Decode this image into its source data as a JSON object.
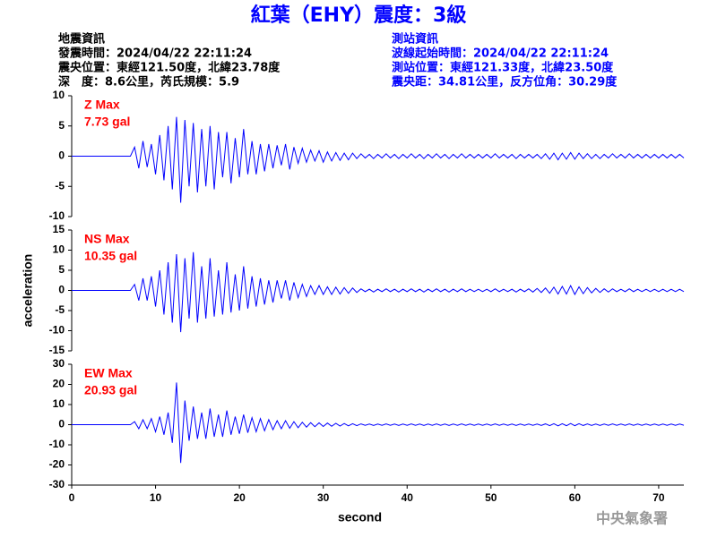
{
  "header": {
    "title": "紅葉（EHY）震度：3級",
    "event": [
      "地震資訊",
      "發震時間：2024/04/22 22:11:24",
      "震央位置：東經121.50度，北緯23.78度",
      "深　度：8.6公里，芮氏規模：5.9"
    ],
    "station": [
      "測站資訊",
      "波線起始時間：2024/04/22 22:11:24",
      "測站位置：東經121.33度，北緯23.50度",
      "震央距：34.81公里，反方位角：30.29度"
    ],
    "footer": "中央氣象署"
  },
  "chart_data": [
    {
      "type": "line",
      "annotation": [
        "Z Max",
        "7.73 gal"
      ],
      "color": "#0000ff",
      "x": [
        0,
        0.5,
        1,
        1.5,
        2,
        2.5,
        3,
        3.5,
        4,
        4.5,
        5,
        5.5,
        6,
        6.5,
        7,
        7.5,
        8,
        8.5,
        9,
        9.5,
        10,
        10.5,
        11,
        11.5,
        12,
        12.5,
        13,
        13.5,
        14,
        14.5,
        15,
        15.5,
        16,
        16.5,
        17,
        17.5,
        18,
        18.5,
        19,
        19.5,
        20,
        20.5,
        21,
        21.5,
        22,
        22.5,
        23,
        23.5,
        24,
        24.5,
        25,
        25.5,
        26,
        26.5,
        27,
        27.5,
        28,
        28.5,
        29,
        29.5,
        30,
        30.5,
        31,
        31.5,
        32,
        32.5,
        33,
        33.5,
        34,
        34.5,
        35,
        35.5,
        36,
        36.5,
        37,
        37.5,
        38,
        38.5,
        39,
        39.5,
        40,
        40.5,
        41,
        41.5,
        42,
        42.5,
        43,
        43.5,
        44,
        44.5,
        45,
        45.5,
        46,
        46.5,
        47,
        47.5,
        48,
        48.5,
        49,
        49.5,
        50,
        50.5,
        51,
        51.5,
        52,
        52.5,
        53,
        53.5,
        54,
        54.5,
        55,
        55.5,
        56,
        56.5,
        57,
        57.5,
        58,
        58.5,
        59,
        59.5,
        60,
        60.5,
        61,
        61.5,
        62,
        62.5,
        63,
        63.5,
        64,
        64.5,
        65,
        65.5,
        66,
        66.5,
        67,
        67.5,
        68,
        68.5,
        69,
        69.5,
        70,
        70.5,
        71,
        71.5,
        72,
        72.5,
        73
      ],
      "values": [
        0,
        0,
        0,
        0,
        0,
        0,
        0,
        0,
        0,
        0,
        0,
        0,
        0,
        0,
        0,
        1.5,
        -2,
        2.5,
        -1.8,
        2,
        -3,
        3.5,
        -4,
        5,
        -5.5,
        6.5,
        -7.7,
        6,
        -5,
        5.5,
        -6,
        4.5,
        -5,
        5,
        -5.5,
        4,
        -3.5,
        4,
        -4.5,
        3,
        -3.5,
        4.5,
        -3,
        2.5,
        -3,
        2,
        -2.5,
        2,
        -2,
        1.8,
        -1.5,
        2,
        -2.2,
        1.5,
        -1.2,
        1.3,
        -1,
        1,
        -0.8,
        0.9,
        -1,
        0.7,
        -0.8,
        0.6,
        -0.7,
        0.5,
        -0.6,
        0.5,
        -0.4,
        0.4,
        -0.3,
        0.3,
        -0.4,
        0.3,
        -0.3,
        0.4,
        -0.3,
        0.3,
        -0.4,
        0.3,
        -0.3,
        0.4,
        -0.3,
        0.3,
        -0.4,
        0.3,
        -0.3,
        0.4,
        -0.3,
        0.3,
        -0.4,
        0.3,
        -0.3,
        0.4,
        -0.3,
        0.3,
        -0.3,
        0.3,
        -0.3,
        0.3,
        -0.3,
        0.4,
        -0.3,
        0.3,
        -0.3,
        0.3,
        -0.4,
        0.3,
        -0.3,
        0.3,
        -0.3,
        0.3,
        -0.4,
        0.4,
        -0.5,
        0.5,
        -0.6,
        0.5,
        -0.5,
        0.6,
        -0.5,
        0.5,
        -0.4,
        0.4,
        -0.4,
        0.3,
        -0.4,
        0.3,
        -0.3,
        0.4,
        -0.3,
        0.3,
        -0.3,
        0.4,
        -0.3,
        0.3,
        -0.3,
        0.3,
        -0.3,
        0.3,
        -0.3,
        0.3,
        -0.3,
        0.3,
        -0.3,
        0.3,
        -0.3
      ],
      "xlim": [
        0,
        73
      ],
      "ylim": [
        -10,
        10
      ],
      "yticks": [
        -10,
        -5,
        0,
        5,
        10
      ]
    },
    {
      "type": "line",
      "annotation": [
        "NS Max",
        "10.35 gal"
      ],
      "color": "#0000ff",
      "ylabel": "acceleration",
      "x": [
        0,
        0.5,
        1,
        1.5,
        2,
        2.5,
        3,
        3.5,
        4,
        4.5,
        5,
        5.5,
        6,
        6.5,
        7,
        7.5,
        8,
        8.5,
        9,
        9.5,
        10,
        10.5,
        11,
        11.5,
        12,
        12.5,
        13,
        13.5,
        14,
        14.5,
        15,
        15.5,
        16,
        16.5,
        17,
        17.5,
        18,
        18.5,
        19,
        19.5,
        20,
        20.5,
        21,
        21.5,
        22,
        22.5,
        23,
        23.5,
        24,
        24.5,
        25,
        25.5,
        26,
        26.5,
        27,
        27.5,
        28,
        28.5,
        29,
        29.5,
        30,
        30.5,
        31,
        31.5,
        32,
        32.5,
        33,
        33.5,
        34,
        34.5,
        35,
        35.5,
        36,
        36.5,
        37,
        37.5,
        38,
        38.5,
        39,
        39.5,
        40,
        40.5,
        41,
        41.5,
        42,
        42.5,
        43,
        43.5,
        44,
        44.5,
        45,
        45.5,
        46,
        46.5,
        47,
        47.5,
        48,
        48.5,
        49,
        49.5,
        50,
        50.5,
        51,
        51.5,
        52,
        52.5,
        53,
        53.5,
        54,
        54.5,
        55,
        55.5,
        56,
        56.5,
        57,
        57.5,
        58,
        58.5,
        59,
        59.5,
        60,
        60.5,
        61,
        61.5,
        62,
        62.5,
        63,
        63.5,
        64,
        64.5,
        65,
        65.5,
        66,
        66.5,
        67,
        67.5,
        68,
        68.5,
        69,
        69.5,
        70,
        70.5,
        71,
        71.5,
        72,
        72.5,
        73
      ],
      "values": [
        0,
        0,
        0,
        0,
        0,
        0,
        0,
        0,
        0,
        0,
        0,
        0,
        0,
        0,
        0,
        1.5,
        -2.5,
        3,
        -2.5,
        3.5,
        -4,
        5,
        -6,
        7,
        -8,
        9,
        -10.35,
        8,
        -7,
        9.5,
        -8,
        6,
        -7,
        8,
        -6.5,
        5,
        -6,
        7,
        -5.5,
        4,
        -5,
        6,
        -4.5,
        3.5,
        -4,
        3,
        -3.5,
        2.5,
        -3,
        2.5,
        -2,
        2.5,
        -2.5,
        2,
        -1.8,
        1.5,
        -1.5,
        1.2,
        -1,
        1.2,
        -1,
        0.9,
        -1,
        0.8,
        -0.9,
        0.7,
        -0.7,
        0.6,
        -0.5,
        0.4,
        -0.3,
        0.3,
        -0.4,
        0.3,
        -0.3,
        0.4,
        -0.3,
        0.3,
        -0.4,
        0.3,
        -0.3,
        0.4,
        -0.3,
        0.3,
        -0.4,
        0.3,
        -0.3,
        0.4,
        -0.3,
        0.3,
        -0.4,
        0.3,
        -0.3,
        0.4,
        -0.3,
        0.3,
        -0.3,
        0.3,
        -0.3,
        0.3,
        -0.3,
        0.4,
        -0.3,
        0.3,
        -0.3,
        0.3,
        -0.4,
        0.3,
        -0.3,
        0.4,
        -0.4,
        0.5,
        -0.5,
        0.6,
        -0.7,
        0.8,
        -0.9,
        1,
        -0.9,
        1.2,
        -1,
        0.9,
        -0.8,
        0.7,
        -0.6,
        0.5,
        -0.5,
        0.4,
        -0.4,
        0.4,
        -0.3,
        0.3,
        -0.3,
        0.4,
        -0.3,
        0.3,
        -0.3,
        0.3,
        -0.3,
        0.3,
        -0.3,
        0.3,
        -0.3,
        0.3,
        -0.3,
        0.3,
        -0.3
      ],
      "xlim": [
        0,
        73
      ],
      "ylim": [
        -15,
        15
      ],
      "yticks": [
        -15,
        -10,
        -5,
        0,
        5,
        10,
        15
      ]
    },
    {
      "type": "line",
      "annotation": [
        "EW Max",
        "20.93 gal"
      ],
      "color": "#0000ff",
      "xlabel": "second",
      "x": [
        0,
        0.5,
        1,
        1.5,
        2,
        2.5,
        3,
        3.5,
        4,
        4.5,
        5,
        5.5,
        6,
        6.5,
        7,
        7.5,
        8,
        8.5,
        9,
        9.5,
        10,
        10.5,
        11,
        11.5,
        12,
        12.5,
        13,
        13.5,
        14,
        14.5,
        15,
        15.5,
        16,
        16.5,
        17,
        17.5,
        18,
        18.5,
        19,
        19.5,
        20,
        20.5,
        21,
        21.5,
        22,
        22.5,
        23,
        23.5,
        24,
        24.5,
        25,
        25.5,
        26,
        26.5,
        27,
        27.5,
        28,
        28.5,
        29,
        29.5,
        30,
        30.5,
        31,
        31.5,
        32,
        32.5,
        33,
        33.5,
        34,
        34.5,
        35,
        35.5,
        36,
        36.5,
        37,
        37.5,
        38,
        38.5,
        39,
        39.5,
        40,
        40.5,
        41,
        41.5,
        42,
        42.5,
        43,
        43.5,
        44,
        44.5,
        45,
        45.5,
        46,
        46.5,
        47,
        47.5,
        48,
        48.5,
        49,
        49.5,
        50,
        50.5,
        51,
        51.5,
        52,
        52.5,
        53,
        53.5,
        54,
        54.5,
        55,
        55.5,
        56,
        56.5,
        57,
        57.5,
        58,
        58.5,
        59,
        59.5,
        60,
        60.5,
        61,
        61.5,
        62,
        62.5,
        63,
        63.5,
        64,
        64.5,
        65,
        65.5,
        66,
        66.5,
        67,
        67.5,
        68,
        68.5,
        69,
        69.5,
        70,
        70.5,
        71,
        71.5,
        72,
        72.5,
        73
      ],
      "values": [
        0,
        0,
        0,
        0,
        0,
        0,
        0,
        0,
        0,
        0,
        0,
        0,
        0,
        0,
        0,
        1.5,
        -2,
        2.5,
        -2,
        3,
        -3.5,
        4,
        -5,
        6,
        -9,
        20.93,
        -19,
        12,
        -8,
        9,
        -7,
        6,
        -7,
        8,
        -6,
        5,
        -6,
        7,
        -5,
        4,
        -4.5,
        5,
        -4,
        3.5,
        -3.5,
        3,
        -3,
        2.5,
        -2.5,
        2,
        -2,
        2,
        -1.8,
        1.5,
        -1.5,
        1.2,
        -1.2,
        1,
        -1,
        0.9,
        -0.9,
        0.8,
        -0.8,
        0.7,
        -0.7,
        0.6,
        -0.6,
        0.5,
        -0.5,
        0.4,
        -0.3,
        0.3,
        -0.4,
        0.3,
        -0.3,
        0.4,
        -0.3,
        0.3,
        -0.4,
        0.3,
        -0.3,
        0.4,
        -0.3,
        0.3,
        -0.4,
        0.3,
        -0.3,
        0.4,
        -0.3,
        0.3,
        -0.4,
        0.3,
        -0.3,
        0.4,
        -0.3,
        0.3,
        -0.3,
        0.3,
        -0.3,
        0.3,
        -0.3,
        0.4,
        -0.3,
        0.3,
        -0.3,
        0.3,
        -0.4,
        0.3,
        -0.3,
        0.3,
        -0.3,
        0.3,
        -0.4,
        0.4,
        -0.5,
        0.5,
        -0.6,
        0.5,
        -0.5,
        0.6,
        -0.5,
        0.5,
        -0.4,
        0.4,
        -0.4,
        0.3,
        -0.4,
        0.3,
        -0.3,
        0.4,
        -0.3,
        0.3,
        -0.3,
        0.4,
        -0.3,
        0.3,
        -0.3,
        0.3,
        -0.3,
        0.3,
        -0.3,
        0.3,
        -0.3,
        0.3,
        -0.3,
        0.3,
        -0.3
      ],
      "xlim": [
        0,
        73
      ],
      "ylim": [
        -30,
        30
      ],
      "yticks": [
        -30,
        -20,
        -10,
        0,
        10,
        20,
        30
      ],
      "xticks": [
        0,
        10,
        20,
        30,
        40,
        50,
        60,
        70
      ]
    }
  ]
}
